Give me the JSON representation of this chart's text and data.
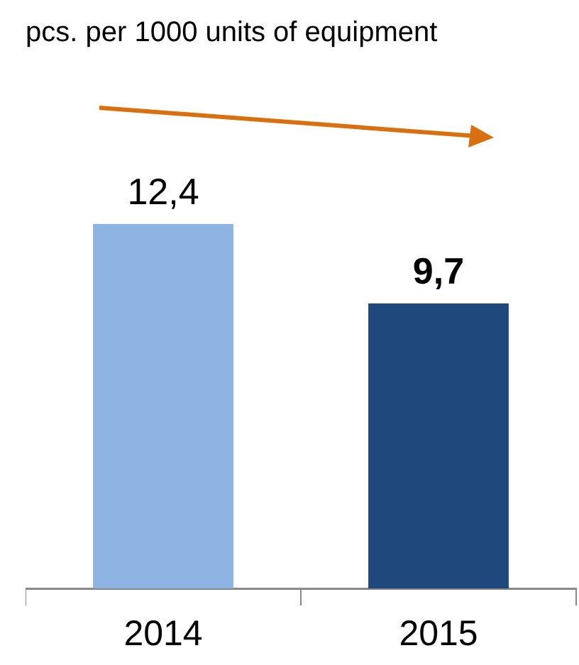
{
  "chart_data": {
    "type": "bar",
    "subtitle": "pcs. per 1000 units of equipment",
    "categories": [
      "2014",
      "2015"
    ],
    "values": [
      12.4,
      9.7
    ],
    "colors": [
      "#8db4e2",
      "#1f497d"
    ],
    "value_labels": [
      "12,4",
      "9,7"
    ]
  }
}
